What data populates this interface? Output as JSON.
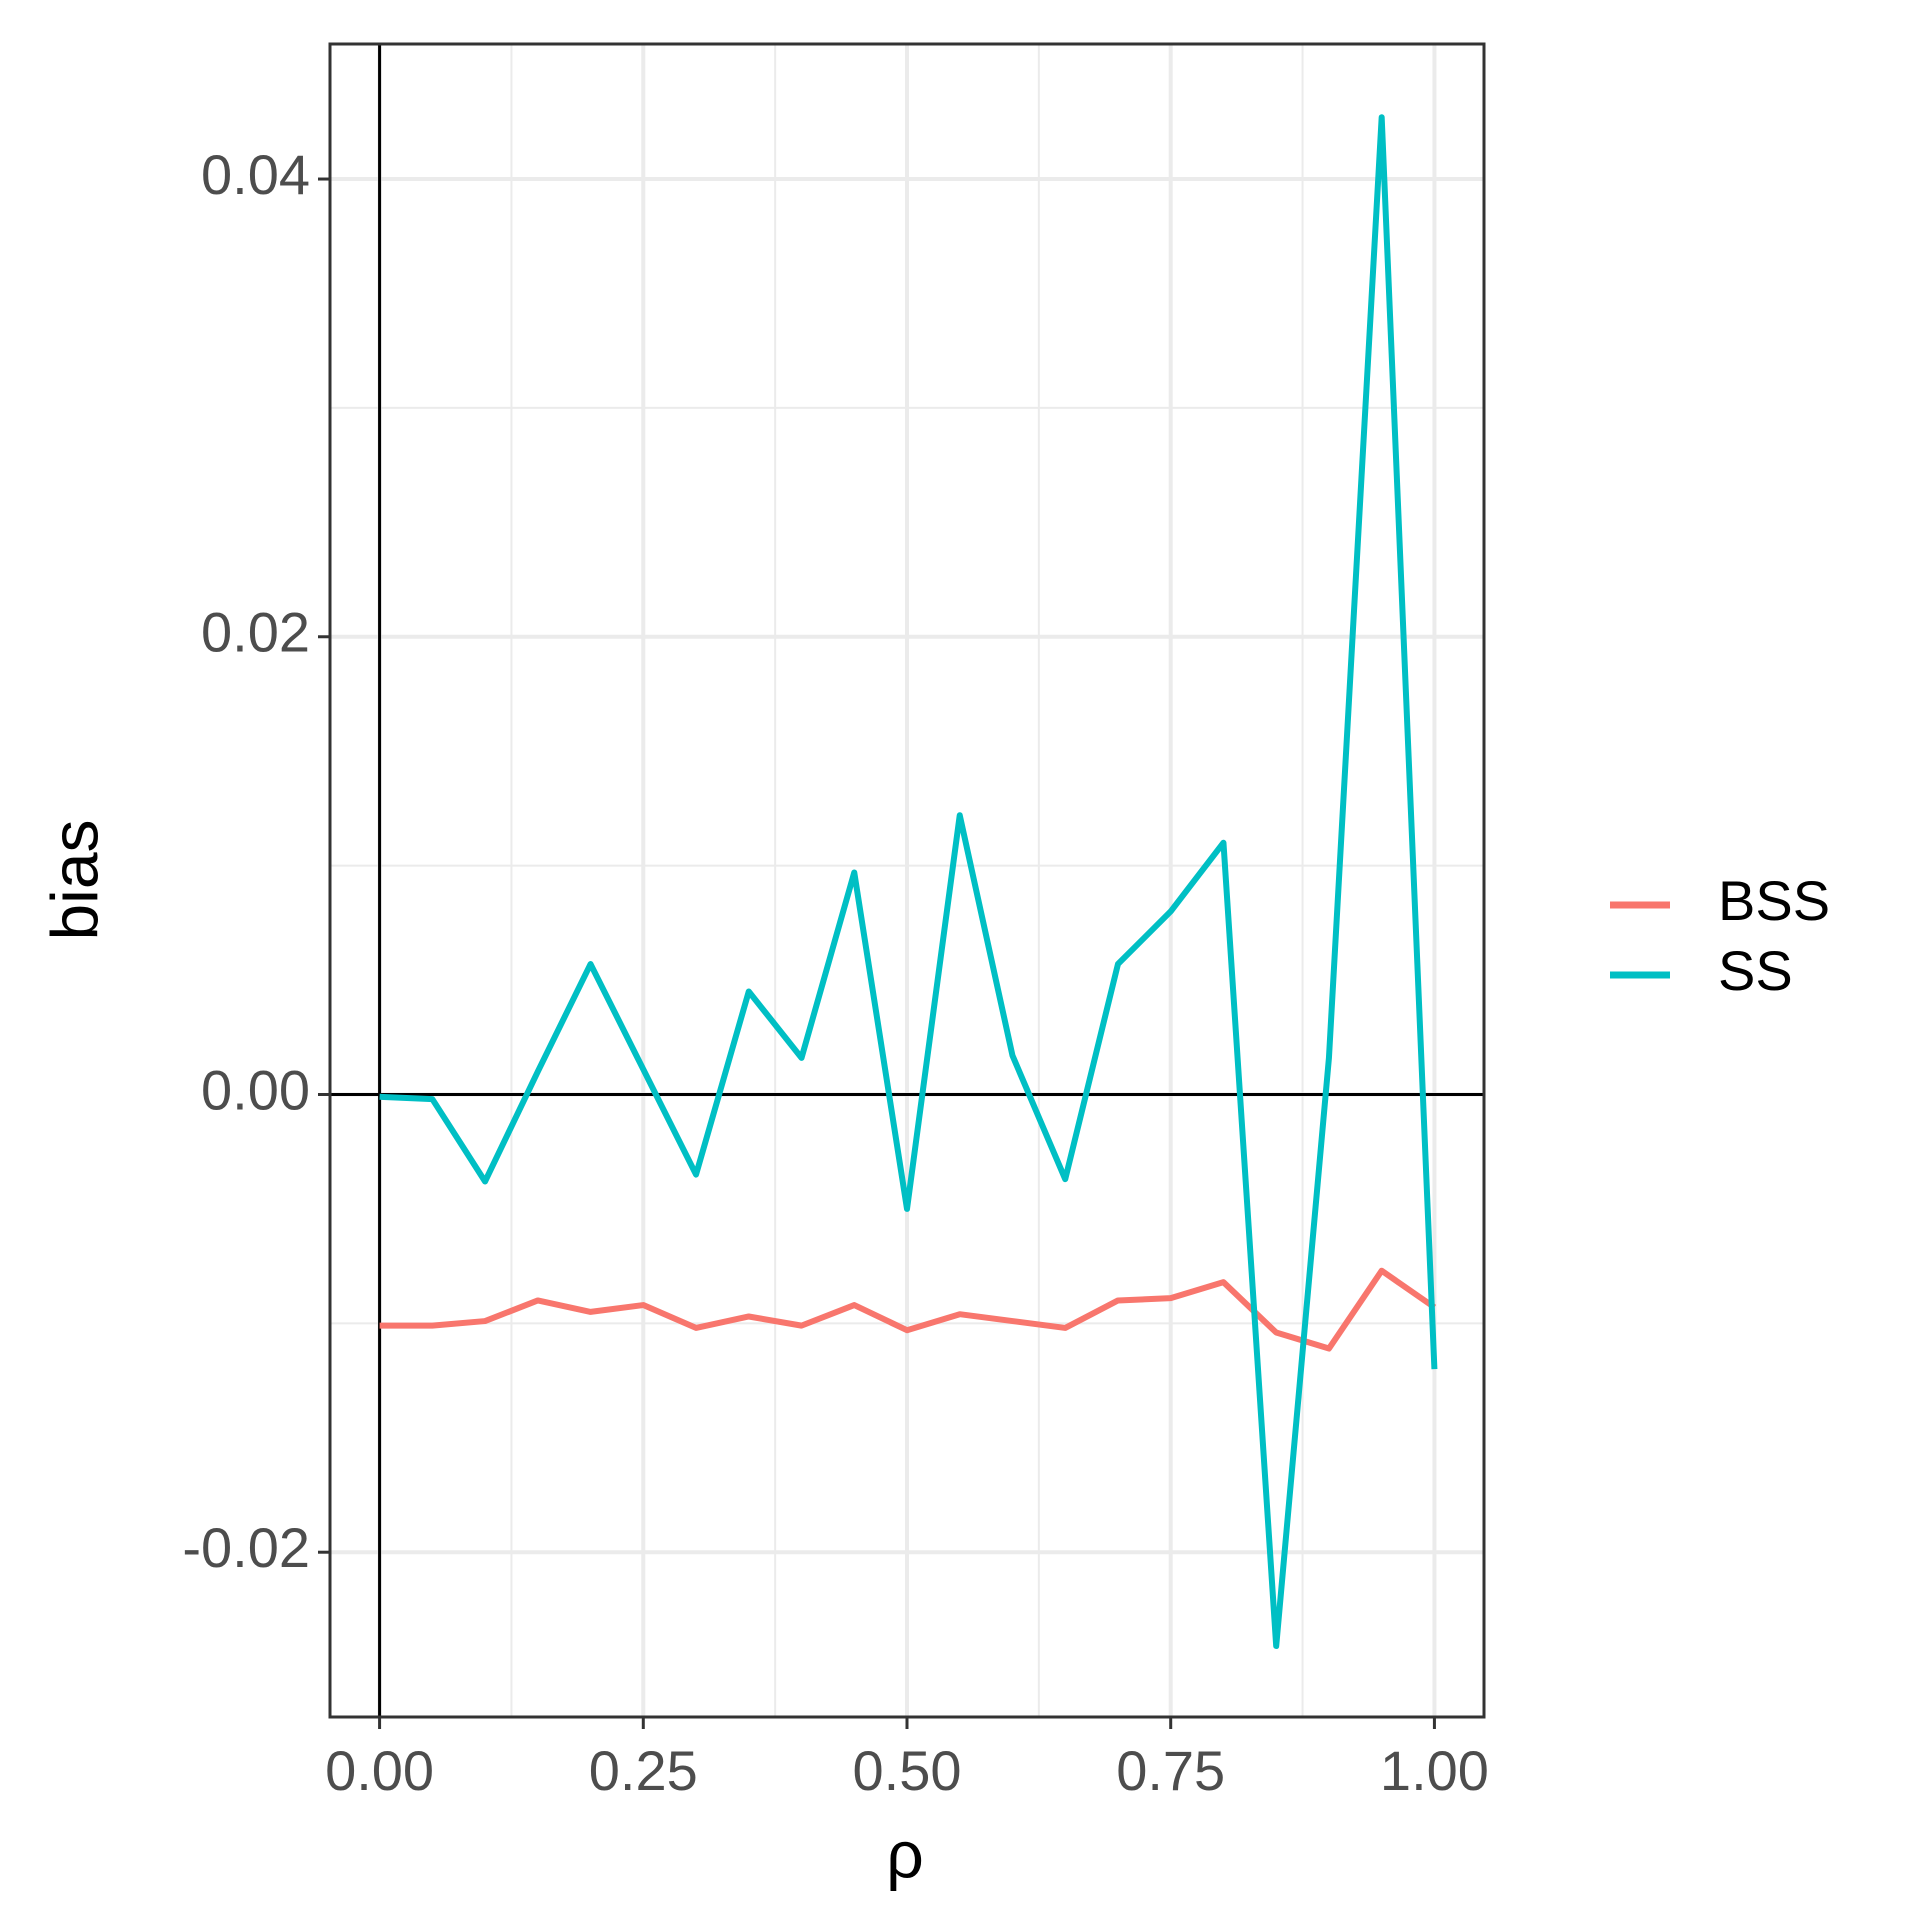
{
  "chart_data": {
    "type": "line",
    "x_label": "ρ",
    "y_label": "bias",
    "x": [
      0,
      0.05,
      0.1,
      0.15,
      0.2,
      0.25,
      0.3,
      0.35,
      0.4,
      0.45,
      0.5,
      0.55,
      0.6,
      0.65,
      0.7,
      0.75,
      0.8,
      0.85,
      0.9,
      0.95,
      1.0
    ],
    "series": [
      {
        "name": "BSS",
        "color": "#f8766d",
        "values": [
          -0.0101,
          -0.0101,
          -0.0099,
          -0.009,
          -0.0095,
          -0.0092,
          -0.0102,
          -0.0097,
          -0.0101,
          -0.0092,
          -0.0103,
          -0.0096,
          -0.0099,
          -0.0102,
          -0.009,
          -0.0089,
          -0.0082,
          -0.0104,
          -0.0111,
          -0.0077,
          -0.0093
        ]
      },
      {
        "name": "SS",
        "color": "#00bfc4",
        "values": [
          -0.0001,
          -0.0002,
          -0.0038,
          0.001,
          0.0057,
          0.0011,
          -0.0035,
          0.0045,
          0.0016,
          0.0097,
          -0.005,
          0.0122,
          0.0017,
          -0.0037,
          0.0057,
          0.008,
          0.011,
          -0.0241,
          0.0016,
          0.0427,
          -0.012
        ]
      }
    ],
    "xlim": [
      -0.047,
      1.047
    ],
    "ylim": [
      -0.0272,
      0.0459
    ],
    "xticks": [
      {
        "value": 0,
        "label": "0.00"
      },
      0.25,
      {
        "value": 0.5,
        "label": "0.50"
      },
      0.75,
      {
        "value": 1,
        "label": "1.00"
      }
    ],
    "yticks": [
      -0.02,
      {
        "value": 0,
        "label": "0.00"
      },
      0.02,
      0.04
    ],
    "x_minor_grid": [
      0.125,
      0.375,
      0.625,
      0.875
    ],
    "y_minor_grid": [
      -0.01,
      0.01,
      0.03
    ],
    "hline": 0,
    "vline": 0,
    "grid": true,
    "legend": "right"
  }
}
